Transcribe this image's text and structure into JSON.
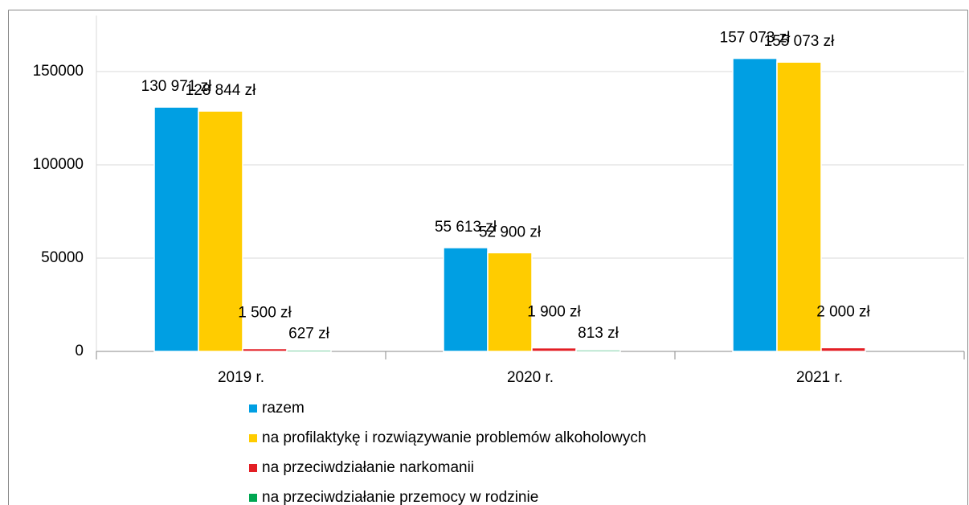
{
  "chart_data": {
    "type": "bar",
    "categories": [
      "2019 r.",
      "2020 r.",
      "2021 r."
    ],
    "series": [
      {
        "name": "razem",
        "color": "#009fe3",
        "values": [
          130971,
          55613,
          157073
        ],
        "value_labels": [
          "130 971 zł",
          "55 613 zł",
          "157 073 zł"
        ]
      },
      {
        "name": "na profilaktykę i rozwiązywanie problemów alkoholowych",
        "color": "#ffcc00",
        "values": [
          128844,
          52900,
          155073
        ],
        "value_labels": [
          "128 844 zł",
          "52 900 zł",
          "155 073 zł"
        ]
      },
      {
        "name": "na przeciwdziałanie narkomanii",
        "color": "#e31e24",
        "values": [
          1500,
          1900,
          2000
        ],
        "value_labels": [
          "1 500 zł",
          "1 900 zł",
          "2 000 zł"
        ]
      },
      {
        "name": "na przeciwdziałanie przemocy w rodzinie",
        "color": "#00a651",
        "values": [
          627,
          813,
          null
        ],
        "value_labels": [
          "627 zł",
          "813 zł",
          null
        ]
      }
    ],
    "ylim": [
      0,
      180000
    ],
    "yticks": [
      0,
      50000,
      100000,
      150000
    ],
    "grid": true,
    "legend": "bottom"
  }
}
